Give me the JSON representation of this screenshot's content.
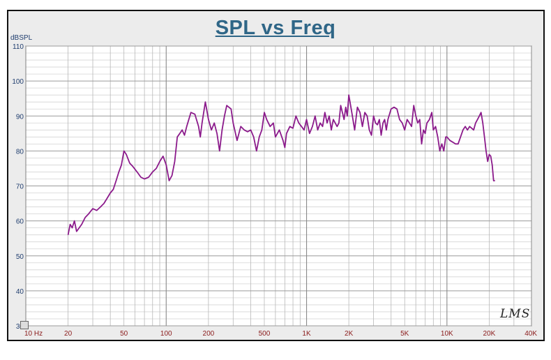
{
  "chart_data": {
    "type": "line",
    "title": "SPL vs Freq",
    "ylabel": "dBSPL",
    "xlabel": "",
    "x_scale": "log",
    "xlim": [
      10,
      40000
    ],
    "ylim": [
      30,
      110
    ],
    "grid": true,
    "y_ticks": [
      {
        "v": 110,
        "label": "110"
      },
      {
        "v": 100,
        "label": "100"
      },
      {
        "v": 90,
        "label": "90"
      },
      {
        "v": 80,
        "label": "80"
      },
      {
        "v": 70,
        "label": "70"
      },
      {
        "v": 60,
        "label": "60"
      },
      {
        "v": 50,
        "label": "50"
      },
      {
        "v": 40,
        "label": "40"
      },
      {
        "v": 30,
        "label": "30"
      }
    ],
    "x_ticks": [
      {
        "v": 10,
        "label": "10 Hz"
      },
      {
        "v": 20,
        "label": "20"
      },
      {
        "v": 50,
        "label": "50"
      },
      {
        "v": 100,
        "label": "100"
      },
      {
        "v": 200,
        "label": "200"
      },
      {
        "v": 500,
        "label": "500"
      },
      {
        "v": 1000,
        "label": "1K"
      },
      {
        "v": 2000,
        "label": "2K"
      },
      {
        "v": 5000,
        "label": "5K"
      },
      {
        "v": 10000,
        "label": "10K"
      },
      {
        "v": 20000,
        "label": "20K"
      },
      {
        "v": 40000,
        "label": "40K"
      }
    ],
    "series": [
      {
        "color": "#8b1a8b",
        "points": [
          [
            20,
            56
          ],
          [
            20.7,
            59
          ],
          [
            21.4,
            58
          ],
          [
            22.2,
            60
          ],
          [
            23,
            57
          ],
          [
            24,
            58
          ],
          [
            25,
            59
          ],
          [
            26.5,
            61
          ],
          [
            28,
            62
          ],
          [
            30,
            63.5
          ],
          [
            32,
            63
          ],
          [
            34,
            64
          ],
          [
            36,
            65
          ],
          [
            38,
            66.5
          ],
          [
            40,
            68
          ],
          [
            42,
            69
          ],
          [
            44,
            71.5
          ],
          [
            46,
            74
          ],
          [
            48,
            76
          ],
          [
            50,
            80
          ],
          [
            52,
            79
          ],
          [
            55,
            76.5
          ],
          [
            58,
            75.5
          ],
          [
            62,
            74
          ],
          [
            66,
            72.5
          ],
          [
            70,
            72
          ],
          [
            75,
            72.5
          ],
          [
            80,
            74
          ],
          [
            85,
            75
          ],
          [
            90,
            77
          ],
          [
            95,
            78.5
          ],
          [
            100,
            76
          ],
          [
            105,
            71.5
          ],
          [
            110,
            73
          ],
          [
            115,
            77
          ],
          [
            120,
            84
          ],
          [
            125,
            85
          ],
          [
            130,
            86
          ],
          [
            135,
            84.5
          ],
          [
            140,
            87
          ],
          [
            150,
            91
          ],
          [
            160,
            90.5
          ],
          [
            170,
            87
          ],
          [
            175,
            84
          ],
          [
            180,
            88
          ],
          [
            190,
            94
          ],
          [
            200,
            89
          ],
          [
            210,
            86
          ],
          [
            220,
            88
          ],
          [
            230,
            85
          ],
          [
            240,
            80
          ],
          [
            250,
            86
          ],
          [
            260,
            90
          ],
          [
            270,
            93
          ],
          [
            290,
            92
          ],
          [
            300,
            88
          ],
          [
            320,
            83
          ],
          [
            340,
            87
          ],
          [
            360,
            86
          ],
          [
            380,
            85.5
          ],
          [
            400,
            86
          ],
          [
            420,
            84
          ],
          [
            440,
            80
          ],
          [
            460,
            84
          ],
          [
            480,
            86
          ],
          [
            500,
            91
          ],
          [
            520,
            89
          ],
          [
            550,
            87
          ],
          [
            580,
            88
          ],
          [
            600,
            84
          ],
          [
            640,
            86
          ],
          [
            680,
            83
          ],
          [
            700,
            81
          ],
          [
            720,
            85
          ],
          [
            760,
            87
          ],
          [
            800,
            86.5
          ],
          [
            840,
            90
          ],
          [
            880,
            88
          ],
          [
            920,
            87
          ],
          [
            960,
            86
          ],
          [
            1000,
            89
          ],
          [
            1050,
            85
          ],
          [
            1100,
            87
          ],
          [
            1150,
            90
          ],
          [
            1200,
            86
          ],
          [
            1250,
            88
          ],
          [
            1300,
            87
          ],
          [
            1350,
            91
          ],
          [
            1400,
            88
          ],
          [
            1450,
            90
          ],
          [
            1500,
            86
          ],
          [
            1550,
            89
          ],
          [
            1600,
            88
          ],
          [
            1650,
            87
          ],
          [
            1700,
            88
          ],
          [
            1750,
            93
          ],
          [
            1800,
            91
          ],
          [
            1850,
            89
          ],
          [
            1900,
            92.5
          ],
          [
            1950,
            90
          ],
          [
            2000,
            96
          ],
          [
            2100,
            91
          ],
          [
            2200,
            86
          ],
          [
            2300,
            92.5
          ],
          [
            2400,
            91
          ],
          [
            2500,
            87
          ],
          [
            2600,
            91
          ],
          [
            2700,
            90
          ],
          [
            2800,
            86
          ],
          [
            2900,
            84.5
          ],
          [
            3000,
            90
          ],
          [
            3100,
            88
          ],
          [
            3200,
            87.5
          ],
          [
            3300,
            89
          ],
          [
            3400,
            84.5
          ],
          [
            3500,
            88
          ],
          [
            3600,
            89
          ],
          [
            3700,
            86
          ],
          [
            3800,
            89
          ],
          [
            4000,
            92
          ],
          [
            4200,
            92.5
          ],
          [
            4400,
            92
          ],
          [
            4600,
            89
          ],
          [
            4800,
            88
          ],
          [
            5000,
            86
          ],
          [
            5200,
            89
          ],
          [
            5400,
            88
          ],
          [
            5600,
            87
          ],
          [
            5800,
            93
          ],
          [
            6000,
            90
          ],
          [
            6200,
            88
          ],
          [
            6400,
            89
          ],
          [
            6600,
            82
          ],
          [
            6800,
            86
          ],
          [
            7000,
            85
          ],
          [
            7200,
            88
          ],
          [
            7500,
            89
          ],
          [
            7800,
            91
          ],
          [
            8000,
            86
          ],
          [
            8300,
            87
          ],
          [
            8600,
            84
          ],
          [
            8900,
            80
          ],
          [
            9200,
            82
          ],
          [
            9500,
            80
          ],
          [
            9800,
            84
          ],
          [
            10000,
            84
          ],
          [
            10500,
            83
          ],
          [
            11000,
            82.5
          ],
          [
            11500,
            82
          ],
          [
            12000,
            82
          ],
          [
            12500,
            84
          ],
          [
            13000,
            86
          ],
          [
            13500,
            87
          ],
          [
            14000,
            86
          ],
          [
            14500,
            87
          ],
          [
            15000,
            86.5
          ],
          [
            15500,
            86
          ],
          [
            16000,
            88
          ],
          [
            16500,
            89
          ],
          [
            17000,
            90
          ],
          [
            17500,
            91
          ],
          [
            18000,
            88
          ],
          [
            18500,
            84
          ],
          [
            19000,
            80
          ],
          [
            19500,
            77
          ],
          [
            20000,
            79
          ],
          [
            20500,
            78.5
          ],
          [
            21000,
            76
          ],
          [
            21500,
            71.5
          ],
          [
            22000,
            71.5
          ]
        ]
      }
    ]
  },
  "logo": {
    "text": "LMS"
  }
}
